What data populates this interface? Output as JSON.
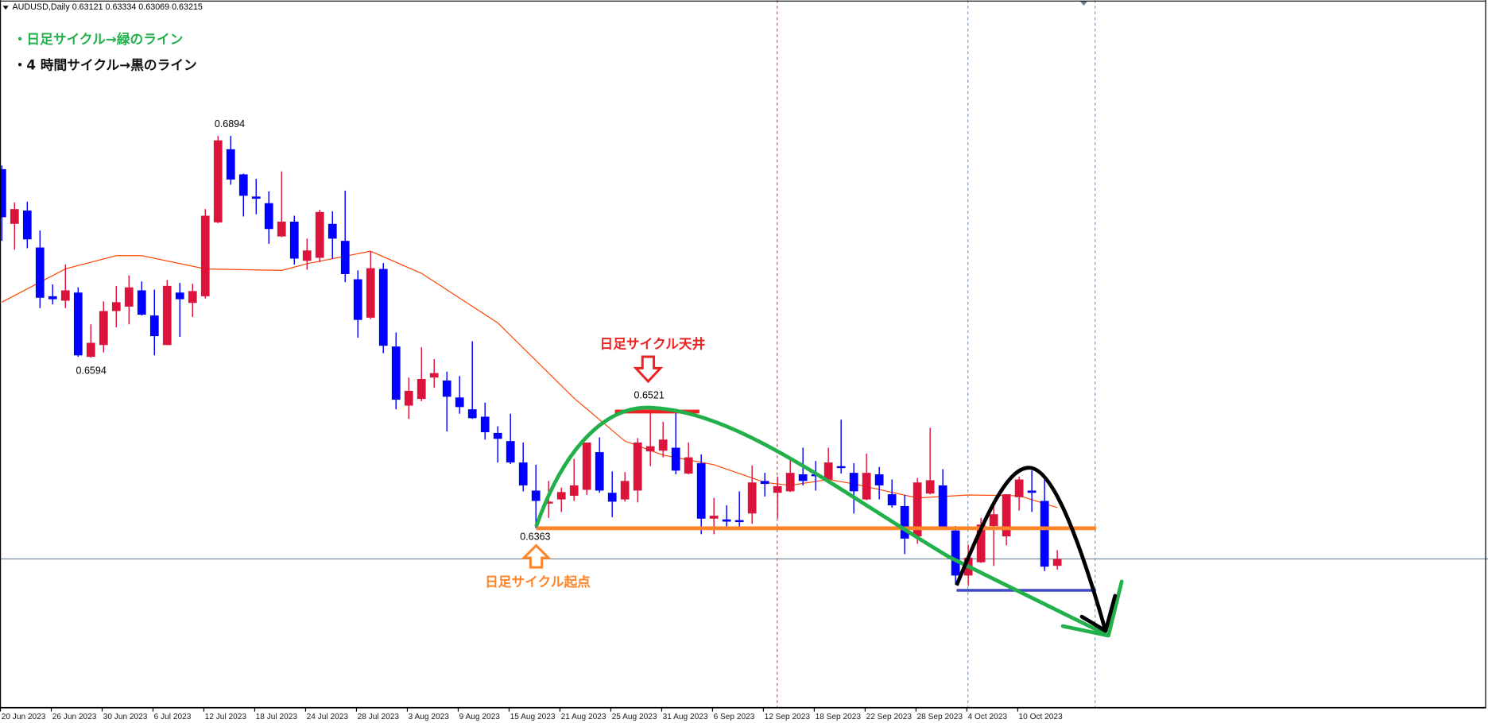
{
  "header": {
    "symbol_label": "AUDUSD,Daily",
    "ohlc": "0.63121 0.63334 0.63069 0.63215"
  },
  "notes": {
    "daily_cycle": "・日足サイクル→緑のライン",
    "h4_cycle": "・4 時間サイクル→黒のライン",
    "cycle_top": "日足サイクル天井",
    "cycle_start": "日足サイクル起点"
  },
  "colors": {
    "bull": "#dc143c",
    "bear": "#0000ff",
    "ma": "#ff4500",
    "daily_cycle_line": "#22b04b",
    "h4_cycle_line": "#000000",
    "start_line": "#ff8427",
    "top_line": "#ee2222",
    "low_line": "#4048c8"
  },
  "chart_data": {
    "type": "candlestick",
    "symbol": "AUDUSD",
    "timeframe": "Daily",
    "price_labels": [
      {
        "date": "13 Jul 2023",
        "text": "0.6894",
        "value": 0.6894,
        "at": "high"
      },
      {
        "date": "29 Jun 2023",
        "text": "0.6594",
        "value": 0.6594,
        "at": "low"
      },
      {
        "date": "30 Aug 2023",
        "text": "0.6521",
        "value": 0.6521,
        "at": "high"
      },
      {
        "date": "17 Aug 2023",
        "text": "0.6363",
        "value": 0.6363,
        "at": "low"
      }
    ],
    "current_price": 0.63215,
    "horizontal_lines": [
      {
        "name": "cycle-start",
        "value": 0.6363
      },
      {
        "name": "cycle-top",
        "value": 0.6521
      },
      {
        "name": "h4-low",
        "value": 0.6279
      }
    ],
    "x_axis": {
      "labels": [
        "20 Jun 2023",
        "26 Jun 2023",
        "30 Jun 2023",
        "6 Jul 2023",
        "12 Jul 2023",
        "18 Jul 2023",
        "24 Jul 2023",
        "28 Jul 2023",
        "3 Aug 2023",
        "9 Aug 2023",
        "15 Aug 2023",
        "21 Aug 2023",
        "25 Aug 2023",
        "31 Aug 2023",
        "6 Sep 2023",
        "12 Sep 2023",
        "18 Sep 2023",
        "22 Sep 2023",
        "28 Sep 2023",
        "4 Oct 2023",
        "10 Oct 2023"
      ]
    },
    "columns": [
      "date",
      "open",
      "high",
      "low",
      "close"
    ],
    "candles": [
      [
        "20 Jun",
        0.6849,
        0.6854,
        0.6752,
        0.6784
      ],
      [
        "21 Jun",
        0.6775,
        0.6804,
        0.674,
        0.6795
      ],
      [
        "22 Jun",
        0.6793,
        0.6805,
        0.6742,
        0.6754
      ],
      [
        "23 Jun",
        0.6743,
        0.6766,
        0.6661,
        0.6675
      ],
      [
        "26 Jun",
        0.6677,
        0.6693,
        0.6666,
        0.6673
      ],
      [
        "27 Jun",
        0.6671,
        0.672,
        0.6661,
        0.6685
      ],
      [
        "28 Jun",
        0.6682,
        0.6689,
        0.6595,
        0.6597
      ],
      [
        "29 Jun",
        0.6595,
        0.6639,
        0.6594,
        0.6614
      ],
      [
        "30 Jun",
        0.6611,
        0.667,
        0.6601,
        0.6657
      ],
      [
        "3 Jul",
        0.6657,
        0.6691,
        0.6635,
        0.6669
      ],
      [
        "4 Jul",
        0.6663,
        0.6705,
        0.6639,
        0.6689
      ],
      [
        "5 Jul",
        0.6685,
        0.6697,
        0.6651,
        0.6652
      ],
      [
        "6 Jul",
        0.6651,
        0.6686,
        0.6597,
        0.6623
      ],
      [
        "7 Jul",
        0.6611,
        0.6699,
        0.6611,
        0.6691
      ],
      [
        "10 Jul",
        0.6682,
        0.6695,
        0.6622,
        0.6673
      ],
      [
        "11 Jul",
        0.6668,
        0.6694,
        0.6649,
        0.6684
      ],
      [
        "12 Jul",
        0.6677,
        0.6795,
        0.6674,
        0.6786
      ],
      [
        "13 Jul",
        0.6777,
        0.6894,
        0.6776,
        0.6888
      ],
      [
        "14 Jul",
        0.6876,
        0.6894,
        0.6828,
        0.6835
      ],
      [
        "17 Jul",
        0.6842,
        0.6843,
        0.6785,
        0.6813
      ],
      [
        "18 Jul",
        0.6812,
        0.6836,
        0.6788,
        0.6809
      ],
      [
        "19 Jul",
        0.6803,
        0.6819,
        0.6748,
        0.6768
      ],
      [
        "20 Jul",
        0.6758,
        0.6846,
        0.6757,
        0.6778
      ],
      [
        "21 Jul",
        0.6778,
        0.6786,
        0.672,
        0.6728
      ],
      [
        "24 Jul",
        0.6725,
        0.6755,
        0.6713,
        0.6739
      ],
      [
        "25 Jul",
        0.6729,
        0.6794,
        0.6723,
        0.6791
      ],
      [
        "26 Jul",
        0.6775,
        0.6792,
        0.6728,
        0.6755
      ],
      [
        "27 Jul",
        0.6752,
        0.682,
        0.6696,
        0.6707
      ],
      [
        "28 Jul",
        0.67,
        0.6712,
        0.6621,
        0.6645
      ],
      [
        "31 Jul",
        0.6648,
        0.6738,
        0.6646,
        0.6715
      ],
      [
        "1 Aug",
        0.6714,
        0.6722,
        0.66,
        0.661
      ],
      [
        "2 Aug",
        0.6609,
        0.6628,
        0.6524,
        0.6537
      ],
      [
        "3 Aug",
        0.6529,
        0.6567,
        0.6511,
        0.6549
      ],
      [
        "4 Aug",
        0.6538,
        0.6608,
        0.6535,
        0.6565
      ],
      [
        "7 Aug",
        0.6567,
        0.6592,
        0.6553,
        0.6573
      ],
      [
        "8 Aug",
        0.6563,
        0.6575,
        0.6494,
        0.6541
      ],
      [
        "9 Aug",
        0.654,
        0.6569,
        0.6518,
        0.6527
      ],
      [
        "10 Aug",
        0.6524,
        0.6616,
        0.6511,
        0.6512
      ],
      [
        "11 Aug",
        0.6514,
        0.6533,
        0.6483,
        0.6493
      ],
      [
        "14 Aug",
        0.6492,
        0.6501,
        0.6452,
        0.6484
      ],
      [
        "15 Aug",
        0.6481,
        0.6518,
        0.645,
        0.6452
      ],
      [
        "16 Aug",
        0.6452,
        0.6479,
        0.6413,
        0.6421
      ],
      [
        "17 Aug",
        0.6414,
        0.6449,
        0.6363,
        0.64
      ],
      [
        "18 Aug",
        0.6397,
        0.6427,
        0.6377,
        0.6399
      ],
      [
        "21 Aug",
        0.6402,
        0.6418,
        0.6385,
        0.6412
      ],
      [
        "22 Aug",
        0.6407,
        0.6457,
        0.64,
        0.6421
      ],
      [
        "23 Aug",
        0.6415,
        0.6479,
        0.6408,
        0.6479
      ],
      [
        "24 Aug",
        0.6466,
        0.6486,
        0.6411,
        0.6414
      ],
      [
        "25 Aug",
        0.6411,
        0.644,
        0.6378,
        0.6399
      ],
      [
        "28 Aug",
        0.6402,
        0.6439,
        0.6399,
        0.6427
      ],
      [
        "29 Aug",
        0.6414,
        0.6485,
        0.6398,
        0.6479
      ],
      [
        "30 Aug",
        0.6467,
        0.6521,
        0.6447,
        0.6474
      ],
      [
        "31 Aug",
        0.6468,
        0.6507,
        0.6459,
        0.6483
      ],
      [
        "1 Sep",
        0.6472,
        0.652,
        0.6436,
        0.6441
      ],
      [
        "4 Sep",
        0.6437,
        0.6479,
        0.6436,
        0.6459
      ],
      [
        "5 Sep",
        0.6451,
        0.6463,
        0.6355,
        0.6376
      ],
      [
        "6 Sep",
        0.6376,
        0.6404,
        0.6355,
        0.638
      ],
      [
        "7 Sep",
        0.6375,
        0.6394,
        0.6365,
        0.6372
      ],
      [
        "8 Sep",
        0.6374,
        0.6413,
        0.6365,
        0.6372
      ],
      [
        "11 Sep",
        0.6383,
        0.6448,
        0.6369,
        0.6425
      ],
      [
        "12 Sep",
        0.6427,
        0.6438,
        0.6406,
        0.6423
      ],
      [
        "13 Sep",
        0.6411,
        0.6433,
        0.6376,
        0.642
      ],
      [
        "14 Sep",
        0.6413,
        0.6459,
        0.6412,
        0.6438
      ],
      [
        "15 Sep",
        0.6436,
        0.6472,
        0.6421,
        0.6427
      ],
      [
        "18 Sep",
        0.6436,
        0.6454,
        0.6414,
        0.6434
      ],
      [
        "19 Sep",
        0.6429,
        0.6472,
        0.6425,
        0.6452
      ],
      [
        "20 Sep",
        0.6447,
        0.651,
        0.6437,
        0.6445
      ],
      [
        "21 Sep",
        0.6438,
        0.6451,
        0.6383,
        0.6413
      ],
      [
        "22 Sep",
        0.6402,
        0.6464,
        0.6401,
        0.6438
      ],
      [
        "25 Sep",
        0.6436,
        0.6446,
        0.6402,
        0.6421
      ],
      [
        "26 Sep",
        0.6409,
        0.6429,
        0.6391,
        0.6394
      ],
      [
        "27 Sep",
        0.6393,
        0.6408,
        0.6328,
        0.6349
      ],
      [
        "28 Sep",
        0.6352,
        0.6431,
        0.6342,
        0.6425
      ],
      [
        "29 Sep",
        0.641,
        0.6499,
        0.6409,
        0.6428
      ],
      [
        "2 Oct",
        0.6421,
        0.6443,
        0.6363,
        0.6365
      ],
      [
        "3 Oct",
        0.636,
        0.6366,
        0.6288,
        0.6299
      ],
      [
        "4 Oct",
        0.6299,
        0.6341,
        0.6285,
        0.6323
      ],
      [
        "5 Oct",
        0.6317,
        0.6377,
        0.6316,
        0.6368
      ],
      [
        "6 Oct",
        0.6366,
        0.6398,
        0.6312,
        0.6382
      ],
      [
        "9 Oct",
        0.6352,
        0.6409,
        0.634,
        0.6409
      ],
      [
        "10 Oct",
        0.6405,
        0.6433,
        0.6387,
        0.6429
      ],
      [
        "11 Oct",
        0.6414,
        0.6441,
        0.6385,
        0.6411
      ],
      [
        "12 Oct",
        0.64,
        0.6429,
        0.6305,
        0.6311
      ],
      [
        "13 Oct",
        0.63121,
        0.63334,
        0.63069,
        0.63215
      ]
    ],
    "moving_average": [
      [
        "20 Jun",
        0.6669
      ],
      [
        "27 Jun",
        0.6714
      ],
      [
        "3 Jul",
        0.6732
      ],
      [
        "5 Jul",
        0.6732
      ],
      [
        "12 Jul",
        0.6714
      ],
      [
        "20 Jul",
        0.6712
      ],
      [
        "24 Jul",
        0.6721
      ],
      [
        "31 Jul",
        0.6738
      ],
      [
        "4 Aug",
        0.6708
      ],
      [
        "14 Aug",
        0.6641
      ],
      [
        "22 Aug",
        0.6539
      ],
      [
        "28 Aug",
        0.6481
      ],
      [
        "31 Aug",
        0.6462
      ],
      [
        "6 Sep",
        0.6449
      ],
      [
        "12 Sep",
        0.6425
      ],
      [
        "14 Sep",
        0.6421
      ],
      [
        "19 Sep",
        0.6429
      ],
      [
        "21 Sep",
        0.6423
      ],
      [
        "28 Sep",
        0.6404
      ],
      [
        "4 Oct",
        0.6408
      ],
      [
        "10 Oct",
        0.6407
      ],
      [
        "13 Oct",
        0.6391
      ]
    ]
  }
}
